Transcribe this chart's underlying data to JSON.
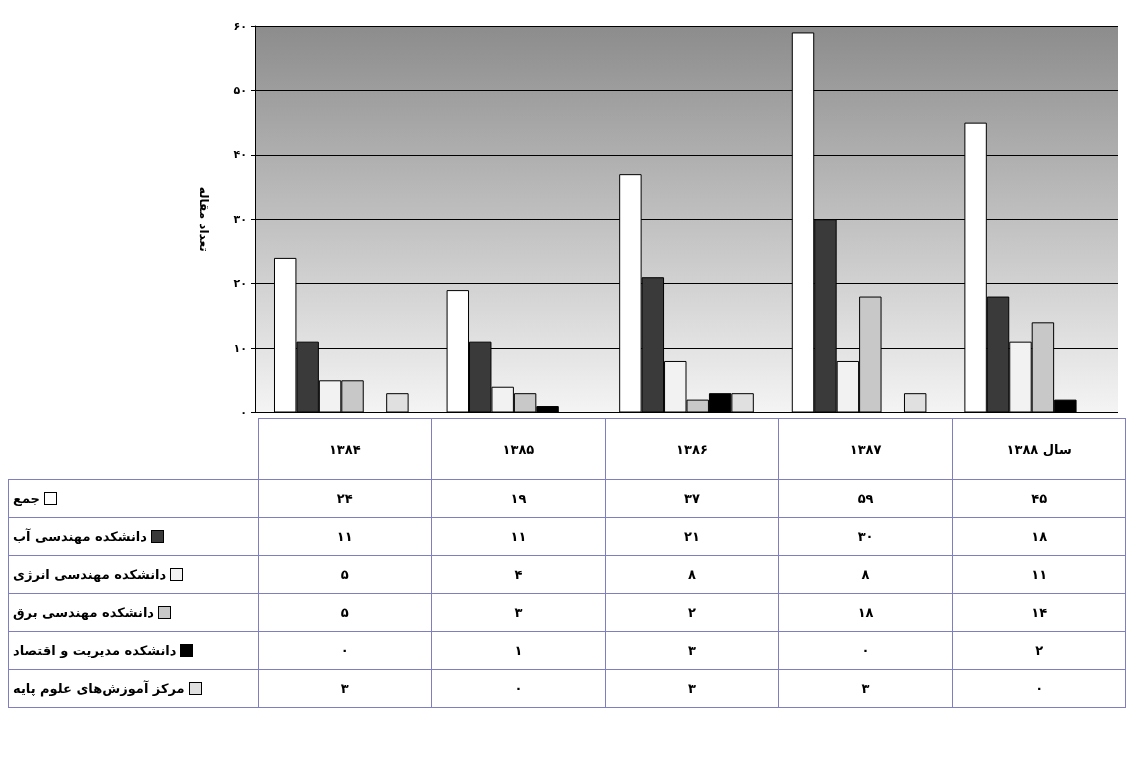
{
  "chart_data": {
    "type": "bar",
    "ylabel": "تعداد مقاله",
    "categories": [
      "۱۳۸۴",
      "۱۳۸۵",
      "۱۳۸۶",
      "۱۳۸۷",
      "سال ۱۳۸۸"
    ],
    "series": [
      {
        "name": "جمع",
        "color": "#ffffff",
        "values": [
          24,
          19,
          37,
          59,
          45
        ],
        "value_labels": [
          "۲۴",
          "۱۹",
          "۳۷",
          "۵۹",
          "۴۵"
        ]
      },
      {
        "name": "دانشکده مهندسی آب",
        "color": "#3a3a3a",
        "values": [
          11,
          11,
          21,
          30,
          18
        ],
        "value_labels": [
          "۱۱",
          "۱۱",
          "۲۱",
          "۳۰",
          "۱۸"
        ]
      },
      {
        "name": "دانشکده مهندسی انرژی",
        "color": "#f2f2f2",
        "values": [
          5,
          4,
          8,
          8,
          11
        ],
        "value_labels": [
          "۵",
          "۴",
          "۸",
          "۸",
          "۱۱"
        ]
      },
      {
        "name": "دانشکده مهندسی برق",
        "color": "#c8c8c8",
        "values": [
          5,
          3,
          2,
          18,
          14
        ],
        "value_labels": [
          "۵",
          "۳",
          "۲",
          "۱۸",
          "۱۴"
        ]
      },
      {
        "name": "دانشکده مدیریت و اقتصاد",
        "color": "#000000",
        "values": [
          0,
          1,
          3,
          0,
          2
        ],
        "value_labels": [
          "۰",
          "۱",
          "۳",
          "۰",
          "۲"
        ]
      },
      {
        "name": "مرکز آموزش‌های علوم پایه",
        "color": "#e0e0e0",
        "values": [
          3,
          0,
          3,
          3,
          0
        ],
        "value_labels": [
          "۳",
          "۰",
          "۳",
          "۳",
          "۰"
        ]
      }
    ],
    "ylim": [
      0,
      60
    ],
    "yticks": [
      {
        "value": 0,
        "label": "۰"
      },
      {
        "value": 10,
        "label": "۱۰"
      },
      {
        "value": 20,
        "label": "۲۰"
      },
      {
        "value": 30,
        "label": "۳۰"
      },
      {
        "value": 40,
        "label": "۴۰"
      },
      {
        "value": 50,
        "label": "۵۰"
      },
      {
        "value": 60,
        "label": "۶۰"
      }
    ],
    "grid": "y",
    "legend": "bottom"
  }
}
